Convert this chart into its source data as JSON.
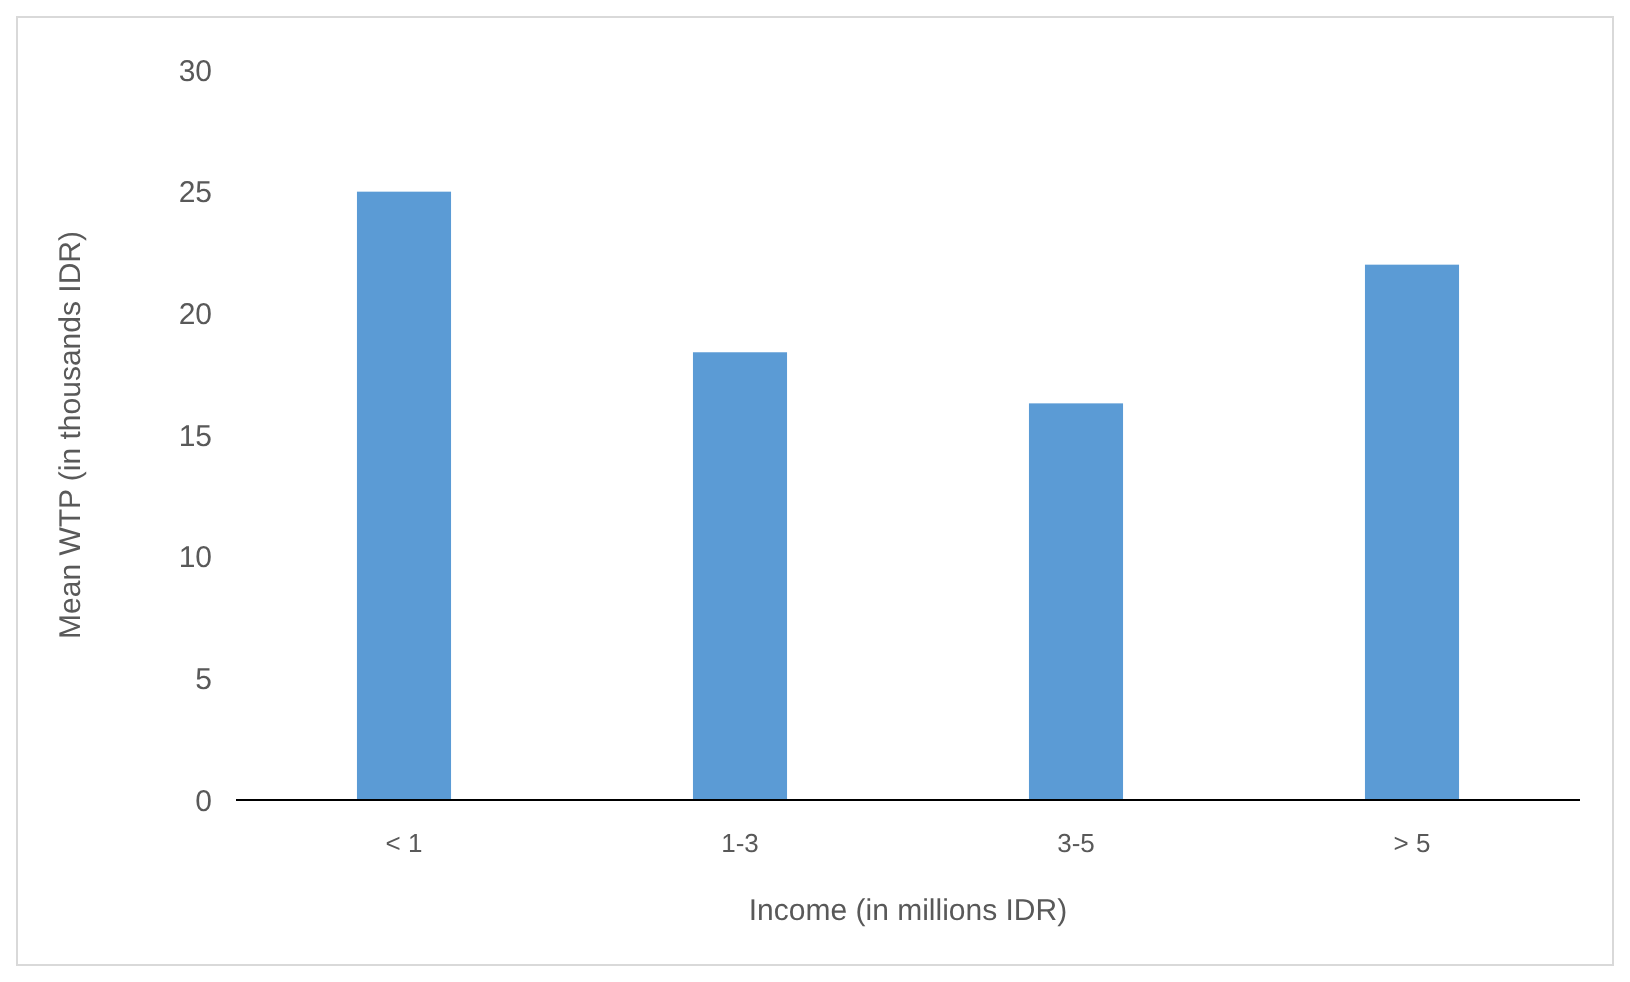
{
  "chart_data": {
    "type": "bar",
    "xlabel": "Income (in millions IDR)",
    "ylabel": "Mean WTP (in thousands IDR)",
    "categories": [
      "< 1",
      "1-3",
      "3-5",
      "> 5"
    ],
    "values": [
      25,
      18.4,
      16.3,
      22
    ],
    "color": "#5b9bd5",
    "ylim": [
      0,
      30
    ],
    "yticks": [
      0,
      5,
      10,
      15,
      20,
      25,
      30
    ],
    "grid": false
  }
}
